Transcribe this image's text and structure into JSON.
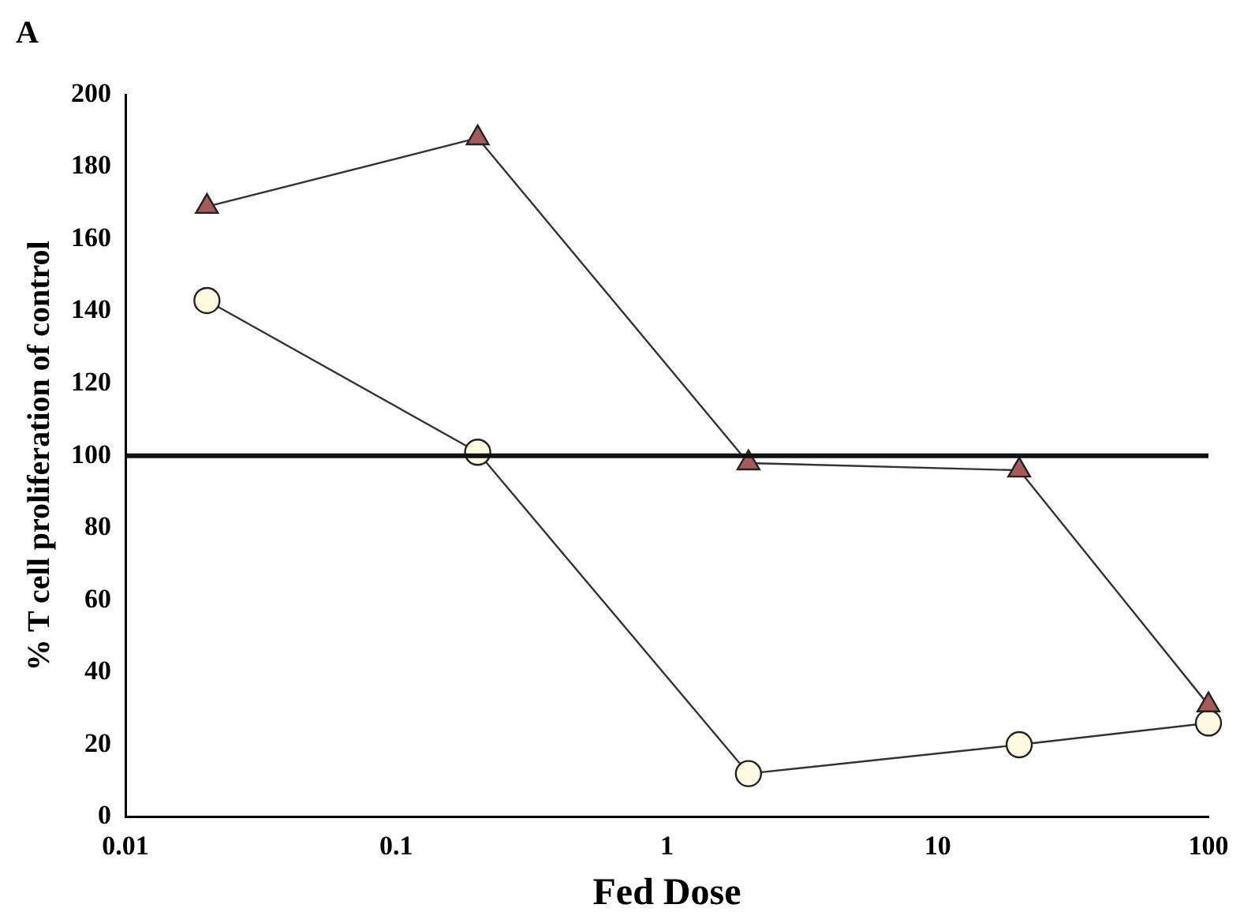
{
  "chart_data": {
    "type": "line",
    "title": "A",
    "xlabel": "Fed Dose",
    "ylabel": "% T cell proliferation of control",
    "x": [
      0.02,
      0.2,
      2,
      20,
      100
    ],
    "series": [
      {
        "color": "#a65a5a",
        "marker": "triangle",
        "values": [
          169,
          188,
          98,
          96,
          31
        ]
      },
      {
        "color": "#fffbe0",
        "marker": "circle",
        "values": [
          143,
          101,
          12,
          20,
          26
        ]
      }
    ],
    "log": "x",
    "xlim": [
      0.01,
      100
    ],
    "xticks": [
      0.01,
      0.1,
      1,
      10,
      100
    ],
    "ylim": [
      0,
      200
    ],
    "yticks": [
      0,
      20,
      40,
      60,
      80,
      100,
      120,
      140,
      160,
      180,
      200
    ],
    "ref_lines": [
      {
        "axis": "y",
        "value": 100,
        "color": "#111111"
      }
    ],
    "grid": false,
    "legend": false
  }
}
